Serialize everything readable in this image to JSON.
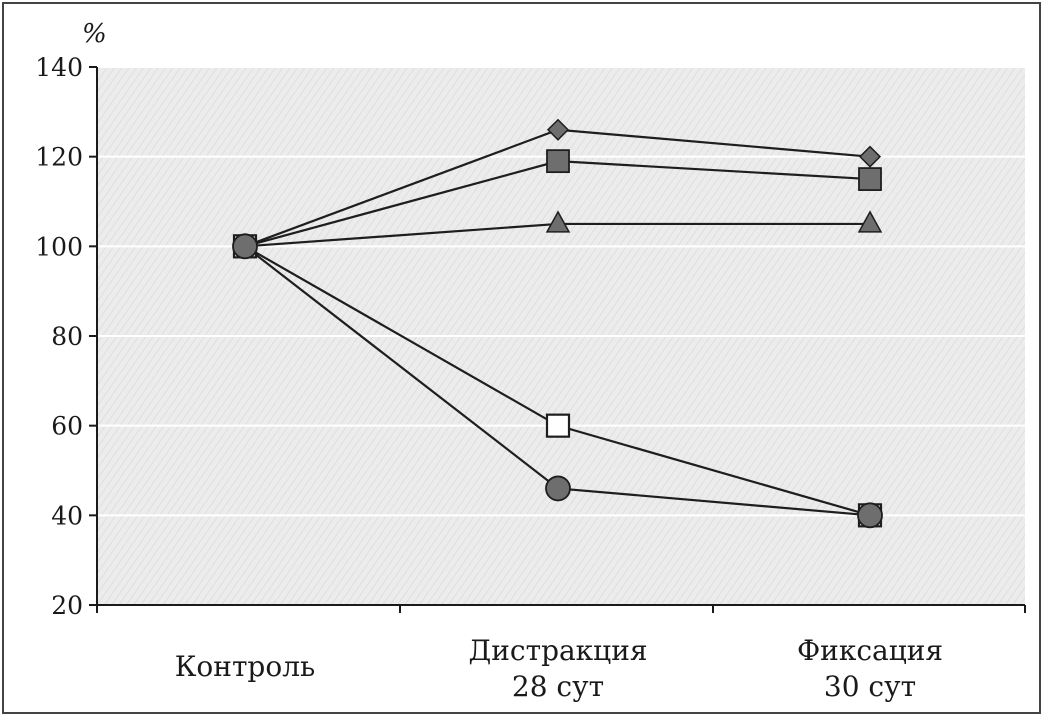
{
  "chart_data": {
    "type": "line",
    "title": "",
    "xlabel": "",
    "ylabel": "%",
    "ylim": [
      20,
      140
    ],
    "yticks": [
      20,
      40,
      60,
      80,
      100,
      120,
      140
    ],
    "grid": true,
    "categories": [
      [
        "Контроль"
      ],
      [
        "Дистракция",
        "28 сут"
      ],
      [
        "Фиксация",
        "30 сут"
      ]
    ],
    "series": [
      {
        "marker": "diamond",
        "values": [
          100,
          126,
          120
        ]
      },
      {
        "marker": "square-filled",
        "values": [
          100,
          119,
          115
        ]
      },
      {
        "marker": "triangle",
        "values": [
          100,
          105,
          105
        ]
      },
      {
        "marker": "square-open",
        "values": [
          100,
          60,
          40
        ]
      },
      {
        "marker": "circle",
        "values": [
          100,
          46,
          40
        ]
      }
    ],
    "colors": {
      "line": "#1e1e1e",
      "marker_fill": "#6e6e6e",
      "marker_open_fill": "#ffffff",
      "plot_bg": "#ececec",
      "grid": "#ffffff",
      "axis": "#1a1a1a"
    }
  }
}
